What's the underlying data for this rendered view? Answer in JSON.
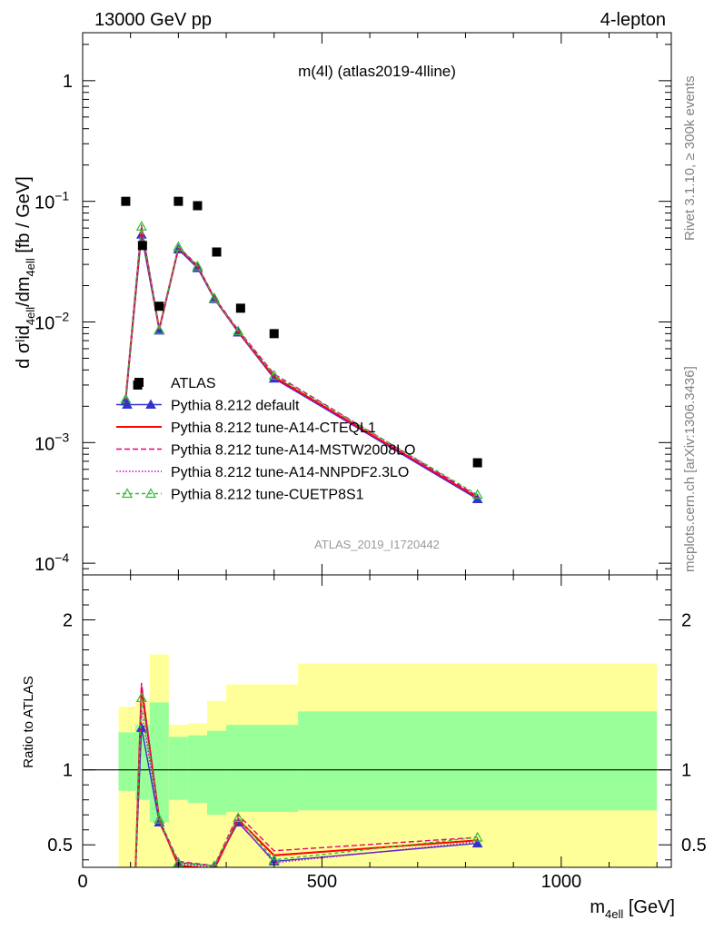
{
  "header": {
    "left": "13000 GeV pp",
    "right": "4-lepton"
  },
  "side_text": {
    "top": "Rivet 3.1.10, ≥ 300k events",
    "bottom": "mcplots.cern.ch [arXiv:1306.3436]"
  },
  "chart_data": [
    {
      "type": "scatter",
      "title": "m(4l) (atlas2019-4lline)",
      "analysis_label": "ATLAS_2019_I1720442",
      "ylabel_main": "d σˡid",
      "ylabel_sub1": "4ell",
      "ylabel_mid": "/dm",
      "ylabel_sub2": "4ell",
      "ylabel_tail": " [fb / GeV]",
      "yscale": "log",
      "ylim": [
        8e-05,
        2.5
      ],
      "xlim": [
        0,
        1230
      ],
      "y_ticks": [
        {
          "value": 1,
          "label": "1"
        },
        {
          "value": 0.1,
          "base": "10",
          "exp": "−1"
        },
        {
          "value": 0.01,
          "base": "10",
          "exp": "−2"
        },
        {
          "value": 0.001,
          "base": "10",
          "exp": "−3"
        },
        {
          "value": 0.0001,
          "base": "10",
          "exp": "−4"
        }
      ],
      "legend_position": "bottom-left",
      "data": {
        "name": "ATLAS",
        "color": "#000000",
        "x": [
          90,
          115,
          125,
          160,
          200,
          240,
          280,
          330,
          400,
          825
        ],
        "y": [
          0.1,
          0.003,
          0.043,
          0.0135,
          0.1,
          0.092,
          0.038,
          0.013,
          0.008,
          0.00068
        ]
      },
      "series": [
        {
          "name": "Pythia 8.212 default",
          "color": "#3333cc",
          "dash": "",
          "marker": "triangle-filled",
          "x": [
            90,
            123,
            160,
            200,
            240,
            275,
            325,
            400,
            825
          ],
          "y": [
            0.0022,
            0.053,
            0.0085,
            0.04,
            0.028,
            0.0155,
            0.0082,
            0.0034,
            0.00034
          ]
        },
        {
          "name": "Pythia 8.212 tune-A14-CTEQL1",
          "color": "#ff0000",
          "dash": "",
          "marker": "none",
          "x": [
            90,
            123,
            160,
            200,
            240,
            275,
            325,
            400,
            825
          ],
          "y": [
            0.0023,
            0.06,
            0.0087,
            0.041,
            0.029,
            0.0158,
            0.0083,
            0.0035,
            0.00035
          ]
        },
        {
          "name": "Pythia 8.212 tune-A14-MSTW2008LO",
          "color": "#e8007a",
          "dash": "6,3",
          "marker": "none",
          "x": [
            90,
            123,
            160,
            200,
            240,
            275,
            325,
            400,
            825
          ],
          "y": [
            0.0024,
            0.064,
            0.0088,
            0.042,
            0.0295,
            0.016,
            0.0086,
            0.0037,
            0.00036
          ]
        },
        {
          "name": "Pythia 8.212 tune-A14-NNPDF2.3LO",
          "color": "#cc00cc",
          "dash": "1.5,2",
          "marker": "none",
          "x": [
            90,
            123,
            160,
            200,
            240,
            275,
            325,
            400,
            825
          ],
          "y": [
            0.0022,
            0.058,
            0.0086,
            0.041,
            0.0285,
            0.0156,
            0.0082,
            0.0034,
            0.00035
          ]
        },
        {
          "name": "Pythia 8.212 tune-CUETP8S1",
          "color": "#33bb33",
          "dash": "4,3",
          "marker": "triangle-open",
          "x": [
            90,
            123,
            160,
            200,
            240,
            275,
            325,
            400,
            825
          ],
          "y": [
            0.0023,
            0.062,
            0.0086,
            0.042,
            0.029,
            0.0158,
            0.0084,
            0.0036,
            0.00037
          ]
        }
      ]
    },
    {
      "type": "line",
      "ylabel": "Ratio to ATLAS",
      "xlabel_main": "m",
      "xlabel_sub": "4ell",
      "xlabel_tail": " [GeV]",
      "xlim": [
        0,
        1230
      ],
      "ylim": [
        0.35,
        2.3
      ],
      "x_ticks": [
        0,
        500,
        1000
      ],
      "y_ticks": [
        0.5,
        1,
        2
      ],
      "reference_line": 1,
      "bands": [
        {
          "x0": 75,
          "x1": 110,
          "outer": [
            0.35,
            1.42
          ],
          "inner": [
            0.86,
            1.25
          ]
        },
        {
          "x0": 110,
          "x1": 140,
          "outer": [
            0.35,
            1.46
          ],
          "inner": [
            0.8,
            1.3
          ]
        },
        {
          "x0": 140,
          "x1": 180,
          "outer": [
            0.35,
            1.77
          ],
          "inner": [
            0.65,
            1.45
          ]
        },
        {
          "x0": 180,
          "x1": 220,
          "outer": [
            0.35,
            1.3
          ],
          "inner": [
            0.8,
            1.22
          ]
        },
        {
          "x0": 220,
          "x1": 260,
          "outer": [
            0.35,
            1.31
          ],
          "inner": [
            0.78,
            1.23
          ]
        },
        {
          "x0": 260,
          "x1": 300,
          "outer": [
            0.35,
            1.46
          ],
          "inner": [
            0.7,
            1.26
          ]
        },
        {
          "x0": 300,
          "x1": 450,
          "outer": [
            0.35,
            1.57
          ],
          "inner": [
            0.72,
            1.3
          ]
        },
        {
          "x0": 450,
          "x1": 1200,
          "outer": [
            0.35,
            1.71
          ],
          "inner": [
            0.73,
            1.39
          ]
        }
      ],
      "series": [
        {
          "name": "Pythia 8.212 default",
          "color": "#3333cc",
          "dash": "",
          "marker": "triangle-filled",
          "x": [
            110,
            123,
            160,
            200,
            275,
            325,
            400,
            825
          ],
          "y": [
            0.3,
            1.28,
            0.65,
            0.38,
            0.36,
            0.65,
            0.39,
            0.51
          ]
        },
        {
          "name": "Pythia 8.212 tune-A14-CTEQL1",
          "color": "#ff0000",
          "dash": "",
          "marker": "none",
          "x": [
            110,
            123,
            160,
            200,
            275,
            325,
            400,
            825
          ],
          "y": [
            0.3,
            1.55,
            0.67,
            0.36,
            0.34,
            0.67,
            0.43,
            0.53
          ]
        },
        {
          "name": "Pythia 8.212 tune-A14-MSTW2008LO",
          "color": "#e8007a",
          "dash": "6,3",
          "marker": "none",
          "x": [
            110,
            123,
            160,
            200,
            275,
            325,
            400,
            825
          ],
          "y": [
            0.3,
            1.58,
            0.67,
            0.39,
            0.36,
            0.7,
            0.46,
            0.55
          ]
        },
        {
          "name": "Pythia 8.212 tune-A14-NNPDF2.3LO",
          "color": "#cc00cc",
          "dash": "1.5,2",
          "marker": "none",
          "x": [
            110,
            123,
            160,
            200,
            275,
            325,
            400,
            825
          ],
          "y": [
            0.3,
            1.4,
            0.66,
            0.37,
            0.35,
            0.66,
            0.38,
            0.52
          ]
        },
        {
          "name": "Pythia 8.212 tune-CUETP8S1",
          "color": "#33bb33",
          "dash": "4,3",
          "marker": "triangle-open",
          "x": [
            110,
            123,
            160,
            200,
            275,
            325,
            400,
            825
          ],
          "y": [
            0.3,
            1.48,
            0.67,
            0.38,
            0.36,
            0.68,
            0.4,
            0.55
          ]
        }
      ]
    }
  ],
  "colors": {
    "band_outer": "#ffff99",
    "band_inner": "#99ff99"
  }
}
